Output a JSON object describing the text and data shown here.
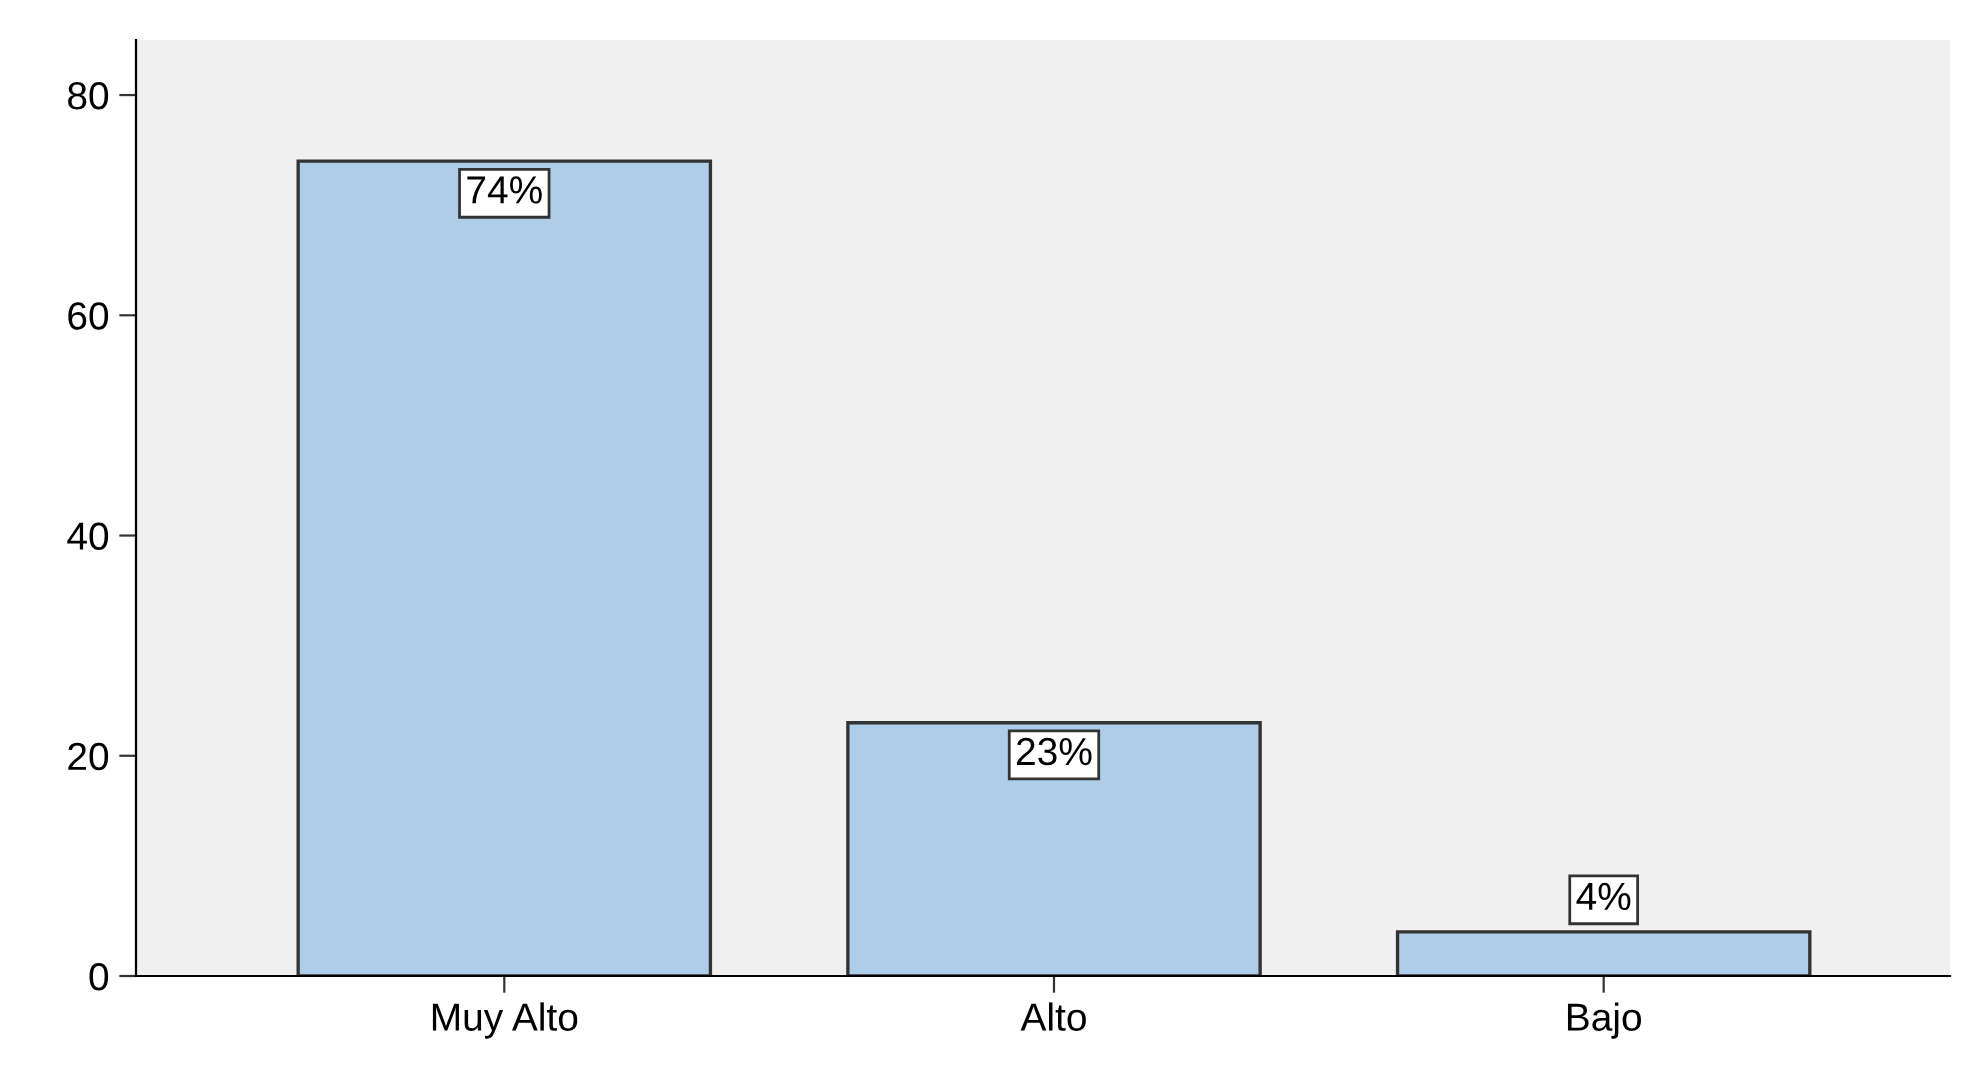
{
  "chart_data": {
    "type": "bar",
    "categories": [
      "Muy Alto",
      "Alto",
      "Bajo"
    ],
    "values": [
      74,
      23,
      4
    ],
    "value_labels": [
      "74%",
      "23%",
      "4%"
    ],
    "color": "#aecde9",
    "ylim": [
      0,
      85
    ],
    "yticks": [
      0,
      20,
      40,
      60,
      80
    ],
    "grid": false,
    "legend": false
  }
}
